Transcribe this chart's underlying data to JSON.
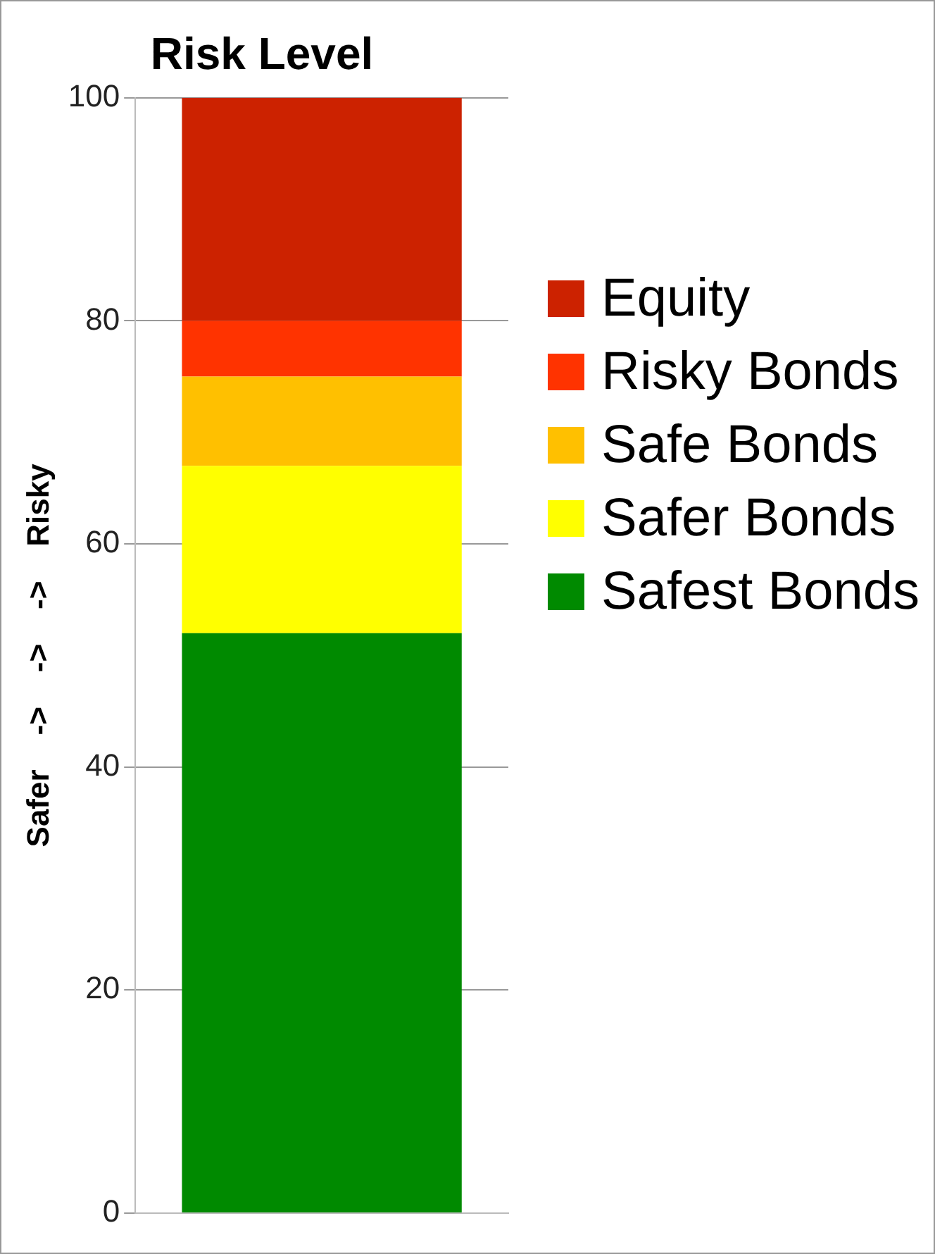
{
  "chart_data": {
    "type": "bar",
    "title": "Risk Level",
    "ylabel": "Safer    ->    ->    ->    Risky",
    "categories": [
      null
    ],
    "stacked": true,
    "series": [
      {
        "name": "Safest Bonds",
        "color": "#008a00",
        "values": [
          52
        ]
      },
      {
        "name": "Safer Bonds",
        "color": "#ffff00",
        "values": [
          15
        ]
      },
      {
        "name": "Safe Bonds",
        "color": "#ffc000",
        "values": [
          8
        ]
      },
      {
        "name": "Risky Bonds",
        "color": "#ff3300",
        "values": [
          5
        ]
      },
      {
        "name": "Equity",
        "color": "#cc2200",
        "values": [
          20
        ]
      }
    ],
    "ylim": [
      0,
      100
    ],
    "yticks": [
      0,
      20,
      40,
      60,
      80,
      100
    ],
    "grid": "y",
    "legend": "right"
  }
}
